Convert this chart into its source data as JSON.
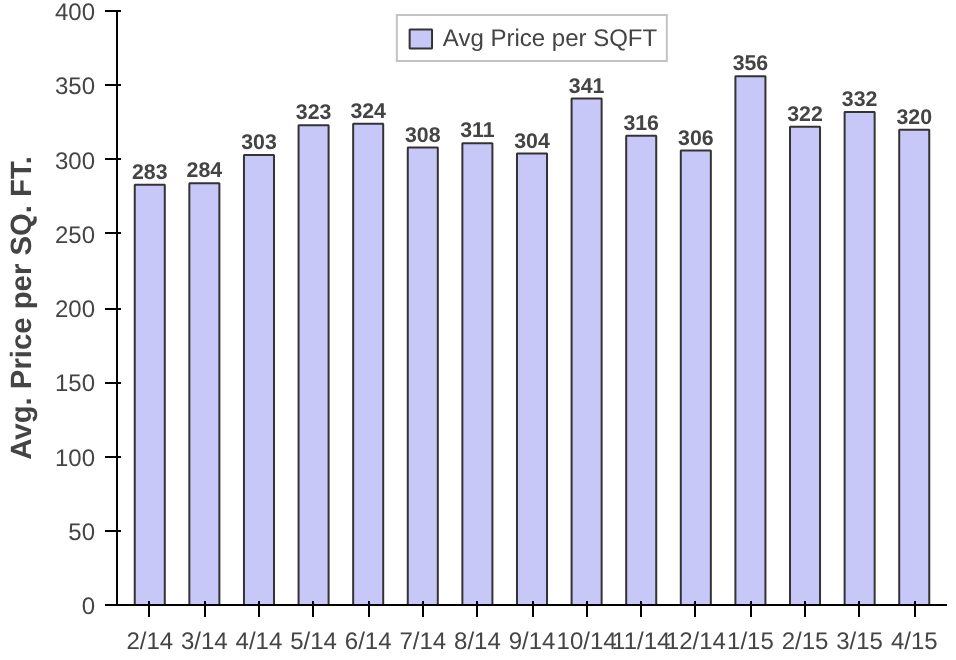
{
  "chart_data": {
    "type": "bar",
    "ylabel": "Avg. Price per SQ. FT.",
    "categories": [
      "2/14",
      "3/14",
      "4/14",
      "5/14",
      "6/14",
      "7/14",
      "8/14",
      "9/14",
      "10/14",
      "11/14",
      "12/14",
      "1/15",
      "2/15",
      "3/15",
      "4/15"
    ],
    "series": [
      {
        "name": "Avg Price per SQFT",
        "color": "#c8c8f8",
        "values": [
          283,
          284,
          303,
          323,
          324,
          308,
          311,
          304,
          341,
          316,
          306,
          356,
          322,
          332,
          320
        ]
      }
    ],
    "ylim": [
      0,
      400
    ],
    "yticks": [
      0,
      50,
      100,
      150,
      200,
      250,
      300,
      350,
      400
    ],
    "data_labels": true,
    "legend": "top",
    "grid": false
  }
}
